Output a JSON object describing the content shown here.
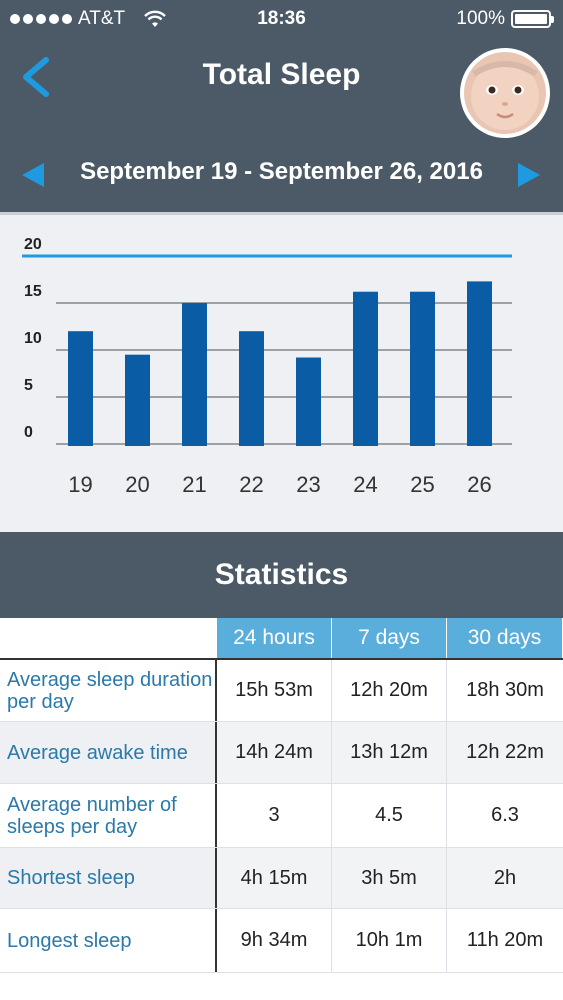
{
  "status_bar": {
    "carrier": "AT&T",
    "time": "18:36",
    "battery": "100%"
  },
  "header": {
    "title": "Total Sleep",
    "date_range": "September 19 - September 26, 2016"
  },
  "colors": {
    "header_bg": "#4b5a66",
    "accent": "#1e9be0",
    "bar": "#0a5ca4",
    "table_head": "#5aaedc",
    "label_text": "#2a79a9"
  },
  "chart_data": {
    "type": "bar",
    "categories": [
      "19",
      "20",
      "21",
      "22",
      "23",
      "24",
      "25",
      "26"
    ],
    "values": [
      12,
      9.5,
      15,
      12,
      9.2,
      16.2,
      16.2,
      17.3
    ],
    "yticks": [
      "0",
      "5",
      "10",
      "15",
      "20"
    ],
    "ylim": [
      0,
      20
    ],
    "goal_line": 20,
    "grid": true
  },
  "statistics": {
    "title": "Statistics",
    "columns": [
      "24 hours",
      "7 days",
      "30 days"
    ],
    "rows": [
      {
        "label": "Average sleep duration per day",
        "values": [
          "15h 53m",
          "12h 20m",
          "18h 30m"
        ]
      },
      {
        "label": "Average awake time",
        "values": [
          "14h 24m",
          "13h 12m",
          "12h 22m"
        ]
      },
      {
        "label": "Average number of sleeps per day",
        "values": [
          "3",
          "4.5",
          "6.3"
        ]
      },
      {
        "label": "Shortest sleep",
        "values": [
          "4h 15m",
          "3h 5m",
          "2h"
        ]
      },
      {
        "label": "Longest sleep",
        "values": [
          "9h 34m",
          "10h 1m",
          "11h 20m"
        ]
      }
    ]
  }
}
